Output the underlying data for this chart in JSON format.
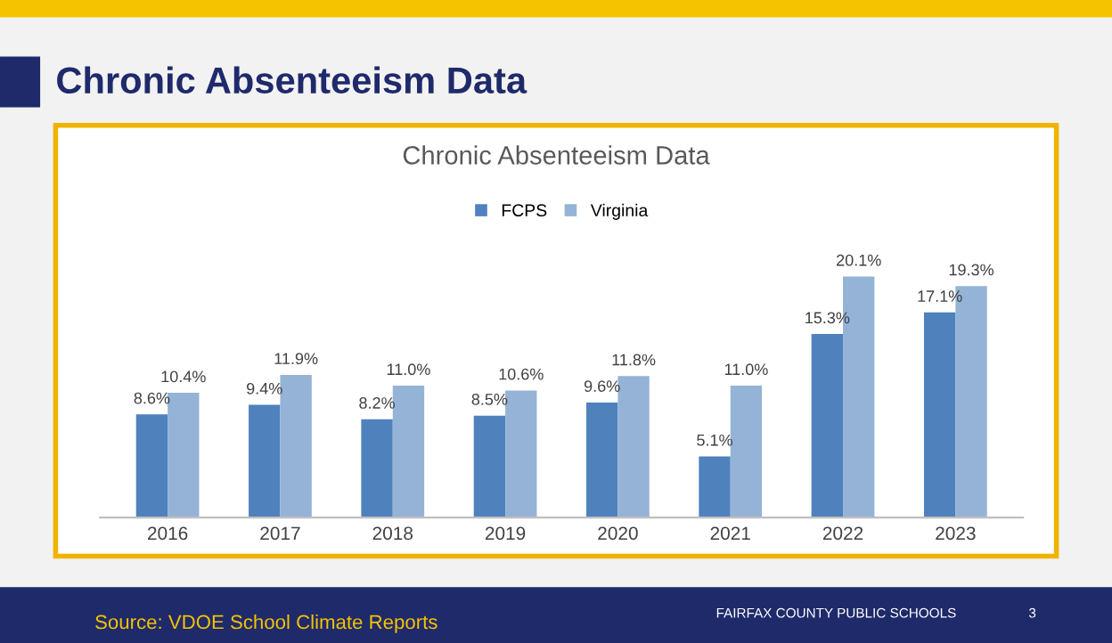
{
  "chart_data": {
    "type": "bar",
    "title": "Chronic Absenteeism Data",
    "subtitle": "Chronic Absenteeism Data",
    "categories": [
      "2016",
      "2017",
      "2018",
      "2019",
      "2020",
      "2021",
      "2022",
      "2023"
    ],
    "series": [
      {
        "name": "FCPS",
        "color": "#4f81bd",
        "values": [
          8.6,
          9.4,
          8.2,
          8.5,
          9.6,
          5.1,
          15.3,
          17.1
        ],
        "value_labels": [
          "8.6%",
          "9.4%",
          "8.2%",
          "8.5%",
          "9.6%",
          "5.1%",
          "15.3%",
          "17.1%"
        ]
      },
      {
        "name": "Virginia",
        "color": "#95b3d7",
        "values": [
          10.4,
          11.9,
          11.0,
          10.6,
          11.8,
          11.0,
          20.1,
          19.3
        ],
        "value_labels": [
          "10.4%",
          "11.9%",
          "11.0%",
          "10.6%",
          "11.8%",
          "11.0%",
          "20.1%",
          "19.3%"
        ]
      }
    ],
    "legend": "top",
    "grid": false,
    "annotations": [
      "Source: VDOE School Climate Reports",
      "FAIRFAX COUNTY PUBLIC SCHOOLS",
      "3"
    ]
  }
}
